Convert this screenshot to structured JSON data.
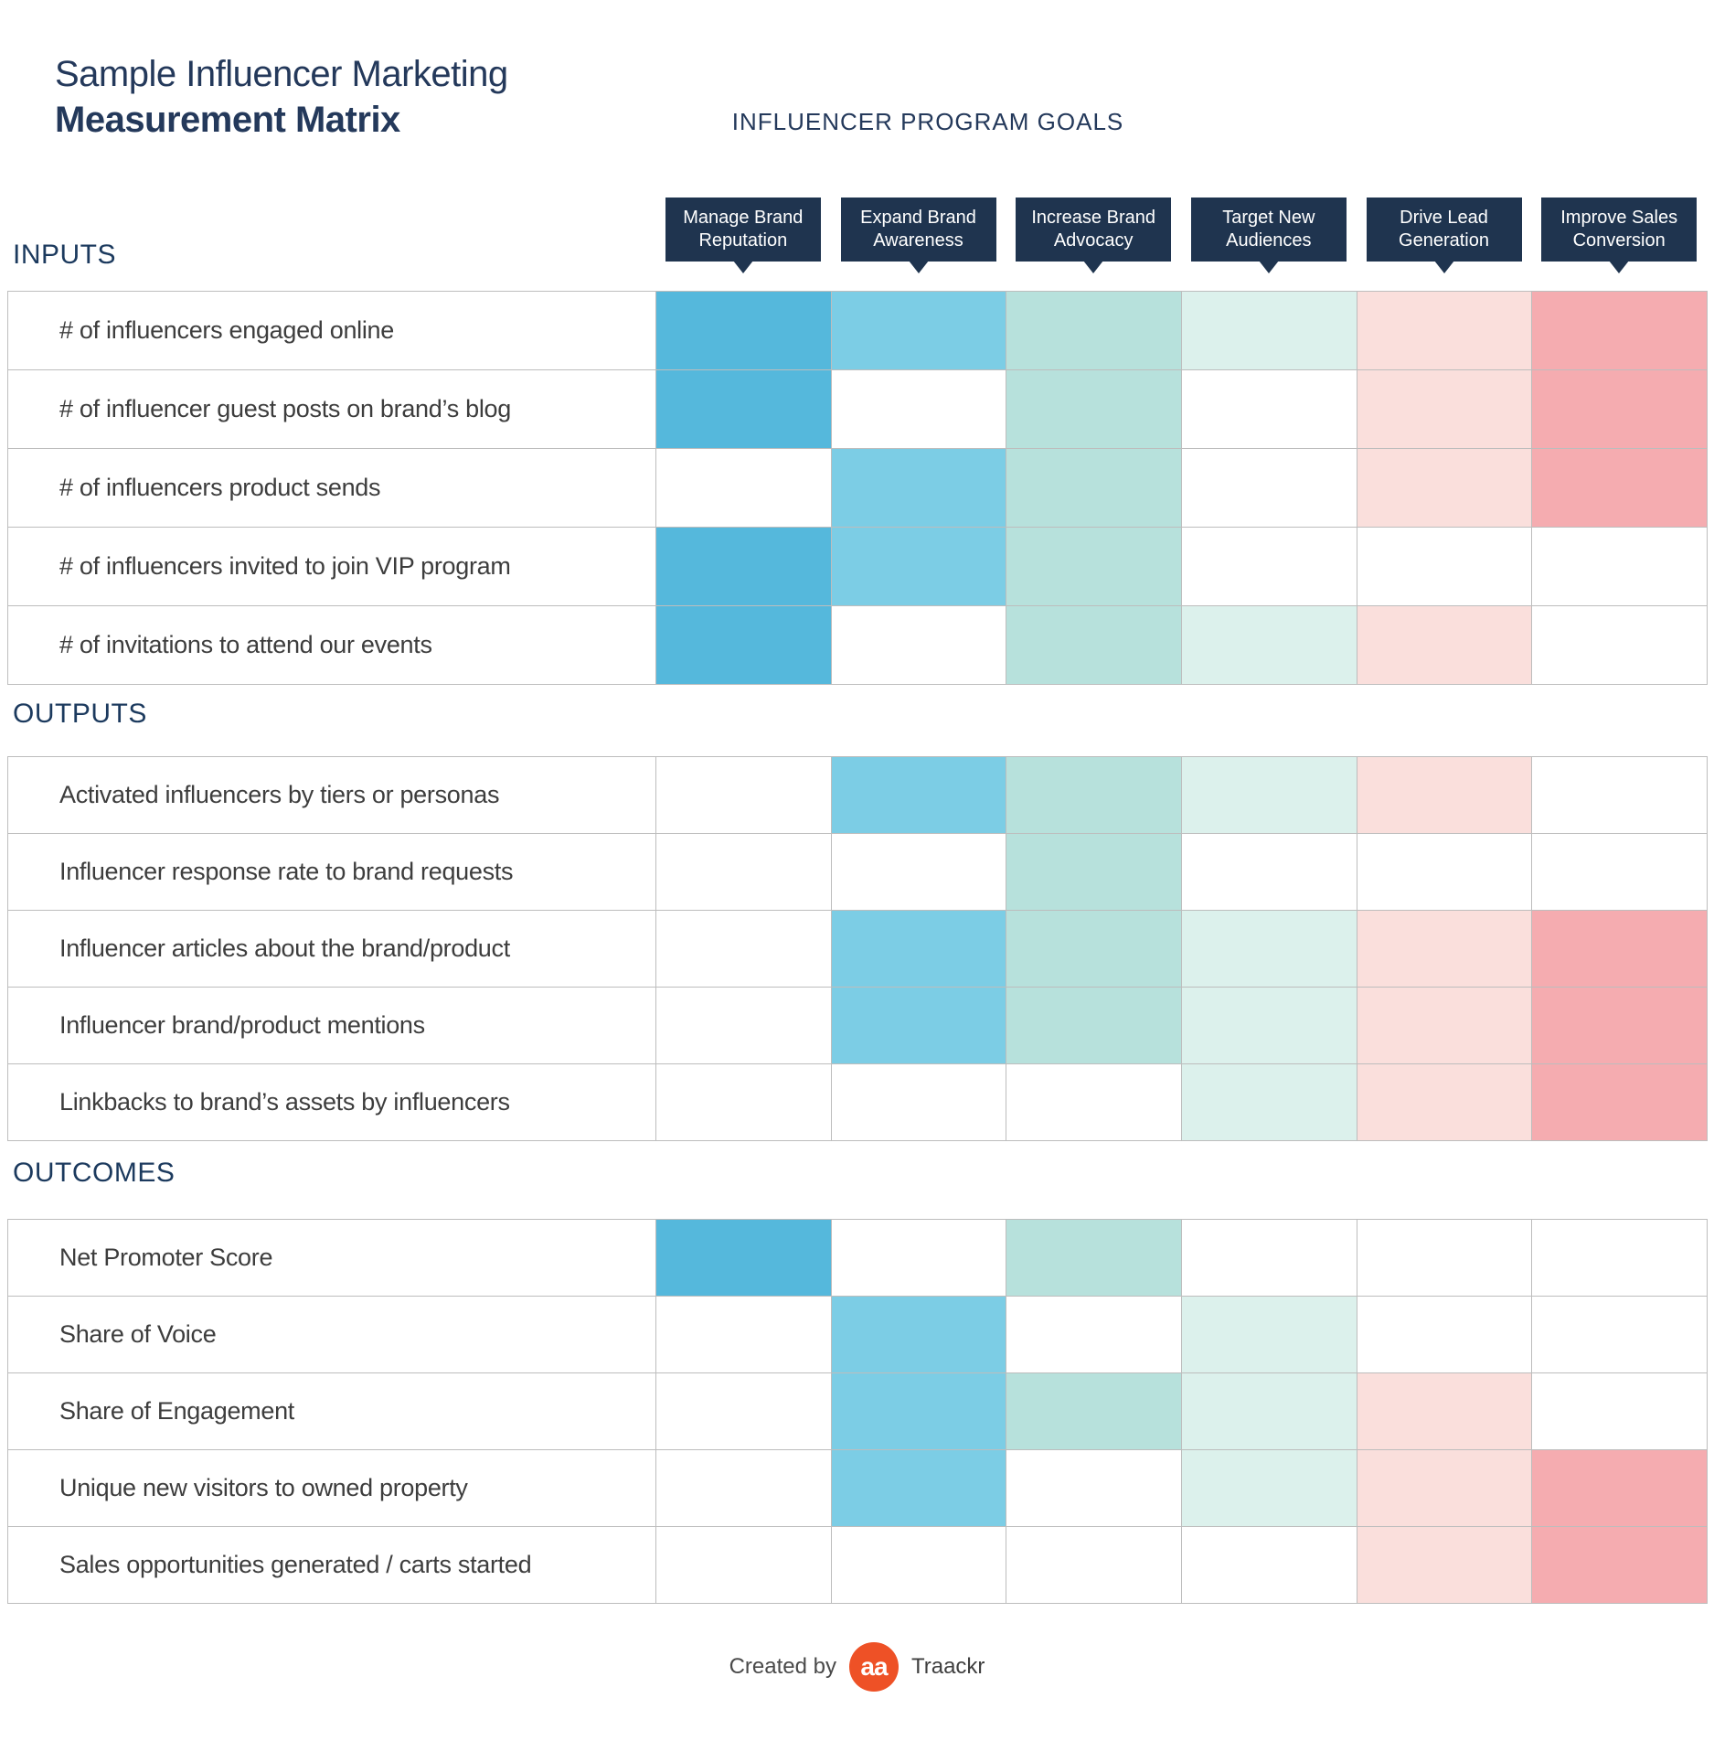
{
  "title": {
    "line1": "Sample Influencer Marketing",
    "line2": "Measurement Matrix"
  },
  "goals_heading": "INFLUENCER PROGRAM GOALS",
  "chart_data": {
    "type": "heatmap",
    "title": "Sample Influencer Marketing Measurement Matrix",
    "columns_header": "INFLUENCER PROGRAM GOALS",
    "legend_position": "top",
    "cell_encoding": "1 = metric supports goal (cell filled with column color), 0 = empty white cell",
    "columns": [
      {
        "line1": "Manage Brand",
        "line2": "Reputation",
        "fill": "#55b8dc"
      },
      {
        "line1": "Expand Brand",
        "line2": "Awareness",
        "fill": "#7ccde5"
      },
      {
        "line1": "Increase Brand",
        "line2": "Advocacy",
        "fill": "#b7e1dc"
      },
      {
        "line1": "Target New",
        "line2": "Audiences",
        "fill": "#dcf1ec"
      },
      {
        "line1": "Drive Lead",
        "line2": "Generation",
        "fill": "#fadfdc"
      },
      {
        "line1": "Improve Sales",
        "line2": "Conversion",
        "fill": "#f5acb0"
      }
    ],
    "sections": [
      {
        "label": "INPUTS",
        "rows": [
          {
            "label": "# of influencers engaged online",
            "cells": [
              1,
              1,
              1,
              1,
              1,
              1
            ]
          },
          {
            "label": "# of influencer guest posts on brand’s blog",
            "cells": [
              1,
              0,
              1,
              0,
              1,
              1
            ]
          },
          {
            "label": "# of influencers product sends",
            "cells": [
              0,
              1,
              1,
              0,
              1,
              1
            ]
          },
          {
            "label": "# of influencers invited to join VIP program",
            "cells": [
              1,
              1,
              1,
              0,
              0,
              0
            ]
          },
          {
            "label": "# of invitations to attend our events",
            "cells": [
              1,
              0,
              1,
              1,
              1,
              0
            ]
          }
        ]
      },
      {
        "label": "OUTPUTS",
        "rows": [
          {
            "label": "Activated influencers by tiers or personas",
            "cells": [
              0,
              1,
              1,
              1,
              1,
              0
            ]
          },
          {
            "label": "Influencer response rate to brand requests",
            "cells": [
              0,
              0,
              1,
              0,
              0,
              0
            ]
          },
          {
            "label": "Influencer articles about the brand/product",
            "cells": [
              0,
              1,
              1,
              1,
              1,
              1
            ]
          },
          {
            "label": "Influencer brand/product mentions",
            "cells": [
              0,
              1,
              1,
              1,
              1,
              1
            ]
          },
          {
            "label": "Linkbacks to brand’s assets by influencers",
            "cells": [
              0,
              0,
              0,
              1,
              1,
              1
            ]
          }
        ]
      },
      {
        "label": "OUTCOMES",
        "rows": [
          {
            "label": "Net Promoter Score",
            "cells": [
              1,
              0,
              1,
              0,
              0,
              0
            ]
          },
          {
            "label": "Share of Voice",
            "cells": [
              0,
              1,
              0,
              1,
              0,
              0
            ]
          },
          {
            "label": "Share of Engagement",
            "cells": [
              0,
              1,
              1,
              1,
              1,
              0
            ]
          },
          {
            "label": "Unique new visitors to owned property",
            "cells": [
              0,
              1,
              0,
              1,
              1,
              1
            ]
          },
          {
            "label": "Sales opportunities generated / carts started",
            "cells": [
              0,
              0,
              0,
              0,
              1,
              1
            ]
          }
        ]
      }
    ]
  },
  "footer": {
    "created_by": "Created by",
    "logo_text": "aa",
    "brand": "Traackr"
  },
  "colors": {
    "header_bg": "#1f344f",
    "title_navy": "#24395b",
    "section_navy": "#1c3a5e",
    "row_text": "#3d3d3d",
    "grid_line": "#bdbdbd",
    "logo_orange": "#ee5126",
    "column_fills": [
      "#55b8dc",
      "#7ccde5",
      "#b7e1dc",
      "#dcf1ec",
      "#fadfdc",
      "#f5acb0"
    ]
  }
}
